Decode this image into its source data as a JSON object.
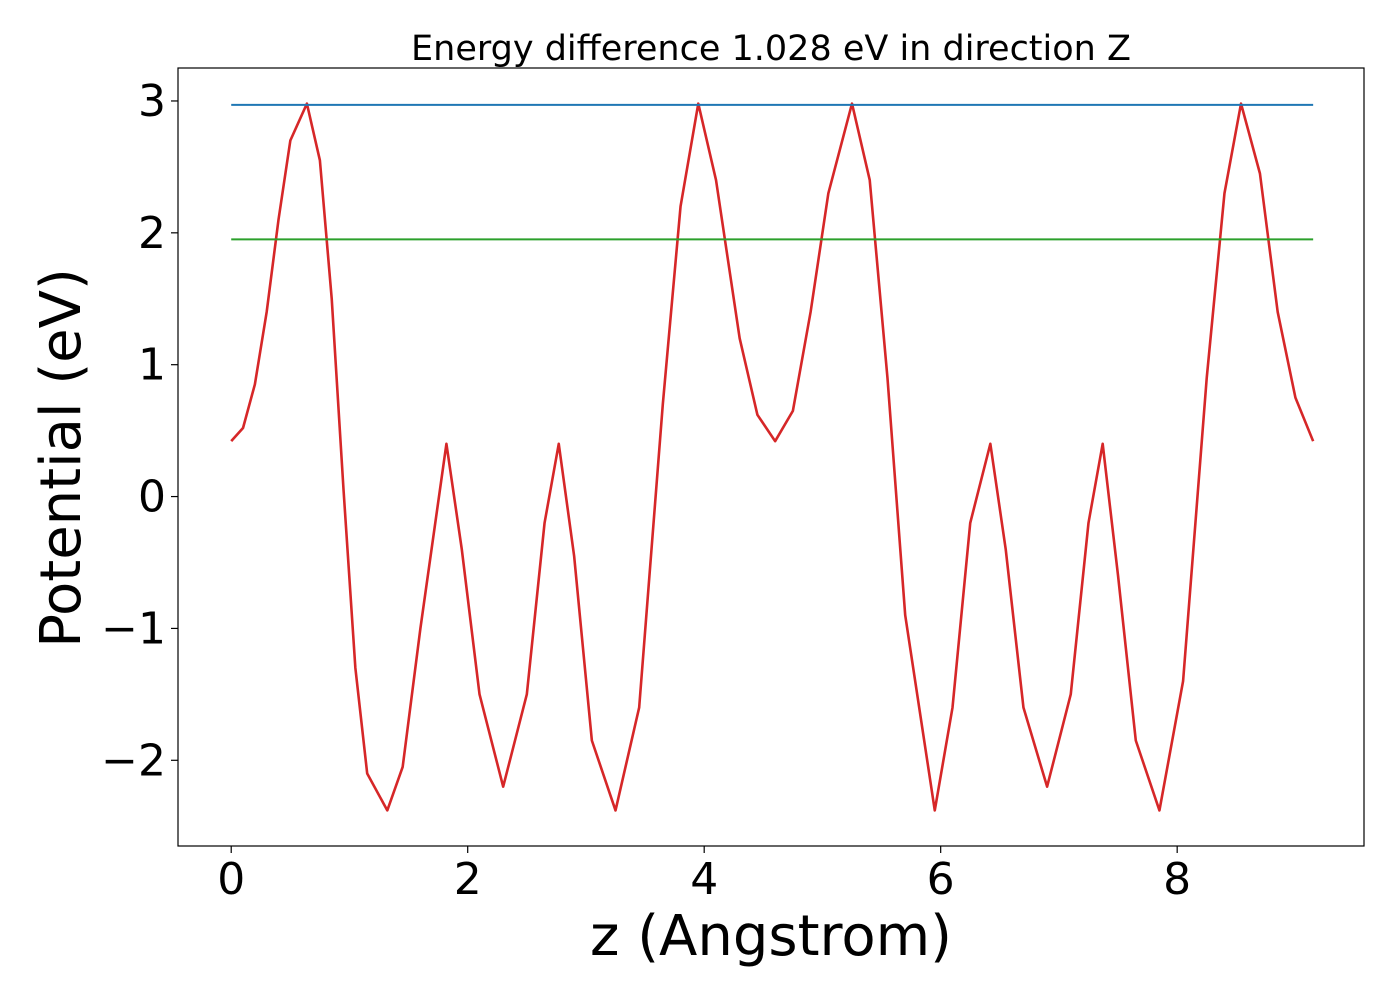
{
  "chart_data": {
    "type": "line",
    "title": "Energy difference 1.028 eV in direction Z",
    "xlabel": "z (Angstrom)",
    "ylabel": "Potential (eV)",
    "xlim": [
      -0.45,
      9.58
    ],
    "ylim": [
      -2.65,
      3.25
    ],
    "xticks": [
      0,
      2,
      4,
      6,
      8
    ],
    "yticks": [
      -2,
      -1,
      0,
      1,
      2,
      3
    ],
    "grid": false,
    "legend": "none",
    "series": [
      {
        "color": "#d62728",
        "x": [
          0.0,
          0.1,
          0.2,
          0.3,
          0.4,
          0.5,
          0.64,
          0.75,
          0.85,
          0.95,
          1.05,
          1.15,
          1.32,
          1.45,
          1.6,
          1.82,
          1.95,
          2.1,
          2.3,
          2.5,
          2.65,
          2.77,
          2.9,
          3.05,
          3.25,
          3.45,
          3.65,
          3.8,
          3.95,
          4.1,
          4.3,
          4.45,
          4.6,
          4.75,
          4.9,
          5.05,
          5.25,
          5.4,
          5.55,
          5.7,
          5.95,
          6.1,
          6.25,
          6.42,
          6.55,
          6.7,
          6.9,
          7.1,
          7.25,
          7.37,
          7.5,
          7.65,
          7.85,
          8.05,
          8.25,
          8.4,
          8.54,
          8.7,
          8.85,
          9.0,
          9.15
        ],
        "y": [
          0.42,
          0.52,
          0.85,
          1.4,
          2.1,
          2.7,
          2.98,
          2.55,
          1.5,
          0.05,
          -1.3,
          -2.1,
          -2.38,
          -2.05,
          -1.0,
          0.4,
          -0.4,
          -1.5,
          -2.2,
          -1.5,
          -0.2,
          0.4,
          -0.45,
          -1.85,
          -2.38,
          -1.6,
          0.7,
          2.2,
          2.98,
          2.4,
          1.2,
          0.62,
          0.42,
          0.65,
          1.4,
          2.3,
          2.98,
          2.4,
          0.9,
          -0.9,
          -2.38,
          -1.6,
          -0.2,
          0.4,
          -0.4,
          -1.6,
          -2.2,
          -1.5,
          -0.2,
          0.4,
          -0.6,
          -1.85,
          -2.38,
          -1.4,
          0.9,
          2.3,
          2.98,
          2.45,
          1.4,
          0.75,
          0.42
        ]
      },
      {
        "color": "#1f77b4",
        "x": [
          0.0,
          9.15
        ],
        "y": [
          2.97,
          2.97
        ]
      },
      {
        "color": "#2ca02c",
        "x": [
          0.0,
          9.15
        ],
        "y": [
          1.95,
          1.95
        ]
      }
    ]
  }
}
